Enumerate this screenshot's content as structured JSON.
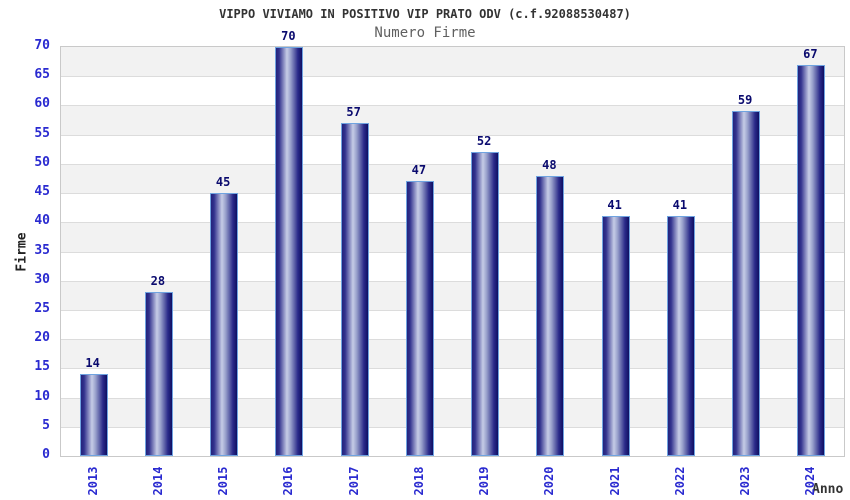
{
  "chart_data": {
    "type": "bar",
    "title": "VIPPO VIVIAMO IN POSITIVO VIP PRATO ODV (c.f.92088530487)",
    "subtitle": "Numero Firme",
    "xlabel": "Anno",
    "ylabel": "Firme",
    "categories": [
      "2013",
      "2014",
      "2015",
      "2016",
      "2017",
      "2018",
      "2019",
      "2020",
      "2021",
      "2022",
      "2023",
      "2024"
    ],
    "values": [
      14,
      28,
      45,
      70,
      57,
      47,
      52,
      48,
      41,
      41,
      59,
      67
    ],
    "ylim": [
      0,
      70
    ],
    "ytick_step": 5,
    "grid": true,
    "legend_position": "none",
    "colors": {
      "bar_dark": "#23237c",
      "bar_light": "#c6cce6",
      "bar_border": "#6fa3e0",
      "value_label": "#0a0a6e",
      "tick_label": "#2a2ad0",
      "title": "#333333",
      "subtitle": "#606060",
      "band_gray": "#f2f2f2",
      "band_white": "#ffffff",
      "gridline": "#dcdcdc",
      "plot_border": "#c9c9c9"
    }
  }
}
